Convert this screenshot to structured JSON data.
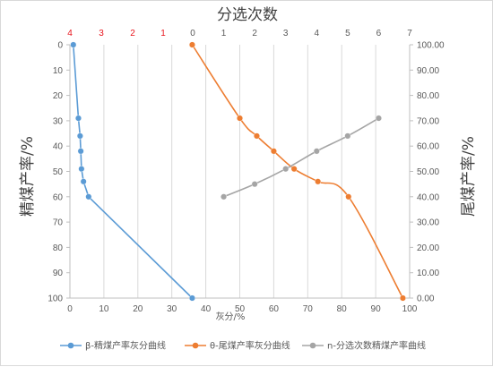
{
  "chart_data": {
    "type": "line",
    "title": "分选次数",
    "xlabel": "灰分/%",
    "ylabel_left": "精煤产率/%",
    "ylabel_right": "尾煤产率/%",
    "axes": {
      "bottom_x": {
        "range": [
          0,
          100
        ],
        "ticks": [
          "0",
          "10",
          "20",
          "30",
          "40",
          "50",
          "60",
          "70",
          "80",
          "90",
          "100"
        ]
      },
      "left_y": {
        "range": [
          0,
          100
        ],
        "inverted": true,
        "ticks": [
          "0",
          "10",
          "20",
          "30",
          "40",
          "50",
          "60",
          "70",
          "80",
          "90",
          "100"
        ]
      },
      "right_y": {
        "range": [
          0,
          100
        ],
        "ticks": [
          "100.00",
          "90.00",
          "80.00",
          "70.00",
          "60.00",
          "50.00",
          "40.00",
          "30.00",
          "20.00",
          "10.00",
          "0.00"
        ]
      },
      "top_secondary": {
        "range": [
          0,
          7
        ],
        "ticks": [
          "0",
          "1",
          "2",
          "3",
          "4",
          "5",
          "6",
          "7"
        ]
      },
      "top_left_labels": [
        "4",
        "3",
        "2",
        "1"
      ]
    },
    "gridlines": "vertical",
    "legend_position": "bottom",
    "series": [
      {
        "name": "β-精煤产率灰分曲线",
        "color": "#5b9bd5",
        "axis": "left",
        "x": [
          1,
          2.5,
          3,
          3.2,
          3.4,
          4,
          5.5,
          36
        ],
        "y": [
          0,
          29,
          36,
          42,
          49,
          54,
          60,
          100
        ]
      },
      {
        "name": "θ-尾煤产率灰分曲线",
        "color": "#ed7d31",
        "axis": "right",
        "x": [
          36,
          50,
          55,
          60,
          66,
          73,
          82,
          98
        ],
        "y": [
          100,
          71,
          64,
          58,
          51,
          46,
          40,
          0
        ]
      },
      {
        "name": "n-分选次数精煤产率曲线",
        "color": "#a5a5a5",
        "axis": "left-top",
        "x": [
          1,
          2,
          3,
          4,
          5,
          6
        ],
        "y": [
          60,
          55,
          49,
          42,
          36,
          29
        ]
      }
    ]
  }
}
